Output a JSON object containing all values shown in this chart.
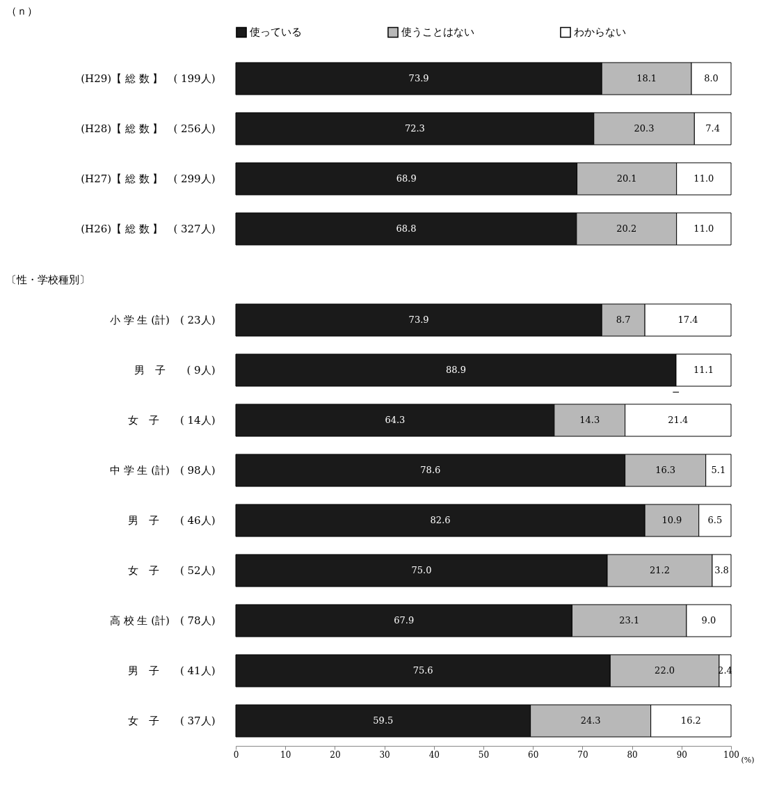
{
  "chart_data": [
    {
      "type": "bar",
      "orientation": "horizontal",
      "stacked": true,
      "legend": "top",
      "tick_labels": "y",
      "annotations": [
        "（ｎ）"
      ],
      "categories": [
        "(H29)【 総 数 】　( 199人)",
        "(H28)【 総 数 】　( 256人)",
        "(H27)【 総 数 】　( 299人)",
        "(H26)【 総 数 】　( 327人)"
      ],
      "xlim": [
        0,
        100
      ],
      "series": [
        {
          "name": "使っている",
          "color": "#1a1a1a",
          "values": [
            73.9,
            72.3,
            68.9,
            68.8
          ],
          "value_labels": [
            "73.9",
            "72.3",
            "68.9",
            "68.8"
          ]
        },
        {
          "name": "使うことはない",
          "color": "#b8b8b8",
          "values": [
            18.1,
            20.3,
            20.1,
            20.2
          ],
          "value_labels": [
            "18.1",
            "20.3",
            "20.1",
            "20.2"
          ]
        },
        {
          "name": "わからない",
          "color": "#ffffff",
          "values": [
            8.0,
            7.4,
            11.0,
            11.0
          ],
          "value_labels": [
            "8.0",
            "7.4",
            "11.0",
            "11.0"
          ]
        }
      ]
    },
    {
      "type": "bar",
      "orientation": "horizontal",
      "stacked": true,
      "legend": false,
      "xlabel": "(%)",
      "annotations": [
        "〔性・学校種別〕",
        {
          "text": "−",
          "x": 88.9,
          "y": "男　子　　(   9人)"
        }
      ],
      "categories": [
        "小 学 生 (計)　(  23人)",
        "男　子　　(   9人)",
        "女　子　　(  14人)",
        "中 学 生 (計)　(  98人)",
        "男　子　　(  46人)",
        "女　子　　(  52人)",
        "高 校 生 (計)　(  78人)",
        "男　子　　(  41人)",
        "女　子　　(  37人)"
      ],
      "xlim": [
        0,
        100
      ],
      "xticks": [
        0,
        10,
        20,
        30,
        40,
        50,
        60,
        70,
        80,
        90,
        100
      ],
      "series": [
        {
          "color": "#1a1a1a",
          "values": [
            73.9,
            88.9,
            64.3,
            78.6,
            82.6,
            75.0,
            67.9,
            75.6,
            59.5
          ],
          "value_labels": [
            "73.9",
            "88.9",
            "64.3",
            "78.6",
            "82.6",
            "75.0",
            "67.9",
            "75.6",
            "59.5"
          ]
        },
        {
          "color": "#b8b8b8",
          "values": [
            8.7,
            0,
            14.3,
            16.3,
            10.9,
            21.2,
            23.1,
            22.0,
            24.3
          ],
          "value_labels": [
            "8.7",
            null,
            "14.3",
            "16.3",
            "10.9",
            "21.2",
            "23.1",
            "22.0",
            "24.3"
          ]
        },
        {
          "color": "#ffffff",
          "values": [
            17.4,
            11.1,
            21.4,
            5.1,
            6.5,
            3.8,
            9.0,
            2.4,
            16.2
          ],
          "value_labels": [
            "17.4",
            "11.1",
            "21.4",
            "5.1",
            "6.5",
            "3.8",
            "9.0",
            "2.4",
            "16.2"
          ]
        }
      ]
    }
  ]
}
